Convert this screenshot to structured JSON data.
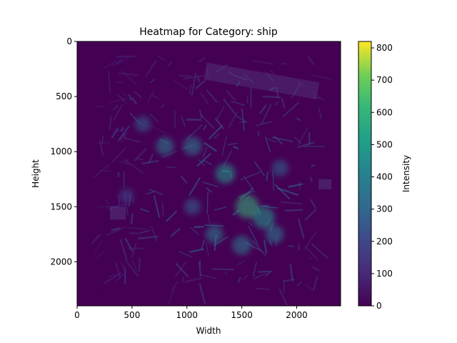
{
  "chart_data": {
    "type": "heatmap",
    "title": "Heatmap for Category: ship",
    "xlabel": "Width",
    "ylabel": "Height",
    "xlim": [
      0,
      2400
    ],
    "ylim": [
      2400,
      0
    ],
    "x_ticks": [
      0,
      500,
      1000,
      1500,
      2000
    ],
    "y_ticks": [
      0,
      500,
      1000,
      1500,
      2000
    ],
    "colorbar": {
      "label": "Intensity",
      "range": [
        0,
        820
      ],
      "ticks": [
        0,
        100,
        200,
        300,
        400,
        500,
        600,
        700,
        800
      ],
      "colormap": "viridis"
    },
    "hotspots": [
      {
        "x": 1550,
        "y": 1500,
        "value": 620
      },
      {
        "x": 1700,
        "y": 1600,
        "value": 560
      },
      {
        "x": 1350,
        "y": 1200,
        "value": 480
      },
      {
        "x": 1050,
        "y": 950,
        "value": 430
      },
      {
        "x": 800,
        "y": 950,
        "value": 400
      },
      {
        "x": 1500,
        "y": 1850,
        "value": 450
      },
      {
        "x": 1250,
        "y": 1750,
        "value": 380
      },
      {
        "x": 1850,
        "y": 1150,
        "value": 330
      },
      {
        "x": 600,
        "y": 750,
        "value": 300
      },
      {
        "x": 450,
        "y": 1400,
        "value": 250
      },
      {
        "x": 1050,
        "y": 1500,
        "value": 320
      },
      {
        "x": 1800,
        "y": 1750,
        "value": 400
      }
    ],
    "grid": false
  }
}
